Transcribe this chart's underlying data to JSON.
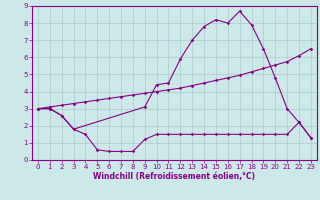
{
  "xlabel": "Windchill (Refroidissement éolien,°C)",
  "xlim": [
    -0.5,
    23.5
  ],
  "ylim": [
    0,
    9
  ],
  "xticks": [
    0,
    1,
    2,
    3,
    4,
    5,
    6,
    7,
    8,
    9,
    10,
    11,
    12,
    13,
    14,
    15,
    16,
    17,
    18,
    19,
    20,
    21,
    22,
    23
  ],
  "yticks": [
    0,
    1,
    2,
    3,
    4,
    5,
    6,
    7,
    8,
    9
  ],
  "background_color": "#cce8e8",
  "line_color": "#880088",
  "grid_color": "#aacccc",
  "line1_x": [
    0,
    1,
    2,
    3,
    4,
    5,
    6,
    7,
    8,
    9,
    10,
    11,
    12,
    13,
    14,
    15,
    16,
    17,
    18,
    19,
    20,
    21,
    22,
    23
  ],
  "line1_y": [
    3.0,
    3.0,
    2.6,
    1.8,
    1.5,
    0.6,
    0.5,
    0.5,
    0.5,
    1.2,
    1.5,
    1.5,
    1.5,
    1.5,
    1.5,
    1.5,
    1.5,
    1.5,
    1.5,
    1.5,
    1.5,
    1.5,
    2.2,
    1.3
  ],
  "line2_x": [
    0,
    1,
    2,
    3,
    9,
    10,
    11,
    12,
    13,
    14,
    15,
    16,
    17,
    18,
    19,
    20,
    21,
    22,
    23
  ],
  "line2_y": [
    3.0,
    3.0,
    2.6,
    1.8,
    3.1,
    4.4,
    4.5,
    5.9,
    7.0,
    7.8,
    8.2,
    8.0,
    8.7,
    7.9,
    6.5,
    4.8,
    3.0,
    2.2,
    1.3
  ],
  "line3_x": [
    0,
    1,
    2,
    3,
    4,
    5,
    6,
    7,
    8,
    9,
    10,
    11,
    12,
    13,
    14,
    15,
    16,
    17,
    18,
    19,
    20,
    21,
    22,
    23
  ],
  "line3_y": [
    3.0,
    3.1,
    3.2,
    3.3,
    3.4,
    3.5,
    3.6,
    3.7,
    3.8,
    3.9,
    4.0,
    4.1,
    4.2,
    4.35,
    4.5,
    4.65,
    4.8,
    4.95,
    5.15,
    5.35,
    5.55,
    5.75,
    6.1,
    6.5
  ],
  "marker_size": 1.8,
  "line_width": 0.8,
  "tick_fontsize": 5.0,
  "xlabel_fontsize": 5.5
}
